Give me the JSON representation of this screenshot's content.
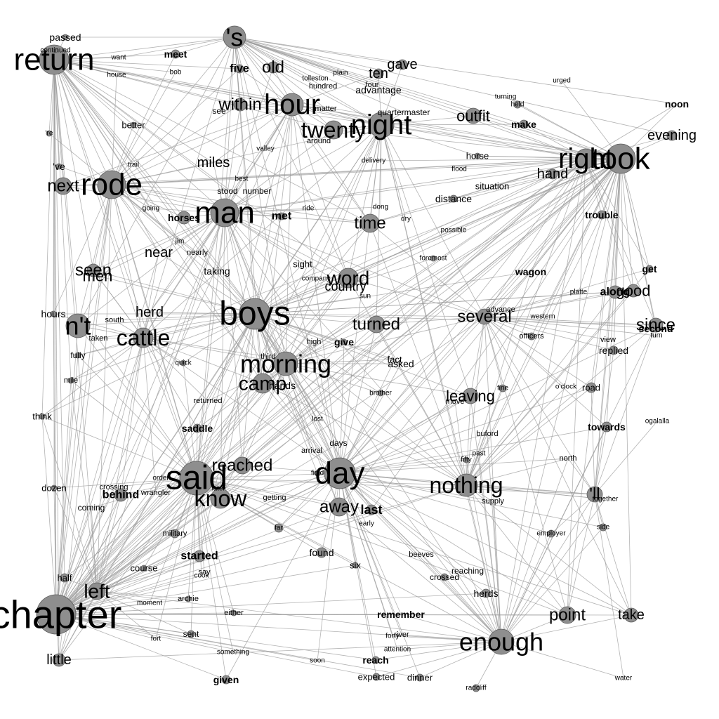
{
  "diagram": {
    "background": "#ffffff",
    "edge_color": "#9a9a9a",
    "node_color": "#8e8e8e",
    "nodes": [
      {
        "id": "chapter",
        "label": "chapter"
      },
      {
        "id": "return",
        "label": "return"
      },
      {
        "id": "s",
        "label": "'s"
      },
      {
        "id": "passed",
        "label": "passed"
      },
      {
        "id": "continued",
        "label": "continued"
      },
      {
        "id": "want",
        "label": "want"
      },
      {
        "id": "meet",
        "label": "meet"
      },
      {
        "id": "house",
        "label": "house"
      },
      {
        "id": "bob",
        "label": "bob"
      },
      {
        "id": "five",
        "label": "five"
      },
      {
        "id": "old",
        "label": "old"
      },
      {
        "id": "tolleston",
        "label": "tolleston"
      },
      {
        "id": "plain",
        "label": "plain"
      },
      {
        "id": "ten",
        "label": "ten"
      },
      {
        "id": "gave",
        "label": "gave"
      },
      {
        "id": "hundred",
        "label": "hundred"
      },
      {
        "id": "four",
        "label": "four"
      },
      {
        "id": "advantage",
        "label": "advantage"
      },
      {
        "id": "within",
        "label": "within"
      },
      {
        "id": "hour",
        "label": "hour"
      },
      {
        "id": "see",
        "label": "see"
      },
      {
        "id": "matter",
        "label": "matter"
      },
      {
        "id": "quartermaster",
        "label": "quartermaster"
      },
      {
        "id": "night",
        "label": "night"
      },
      {
        "id": "twenty",
        "label": "twenty"
      },
      {
        "id": "outfit",
        "label": "outfit"
      },
      {
        "id": "turning",
        "label": "turning"
      },
      {
        "id": "held",
        "label": "held"
      },
      {
        "id": "urged",
        "label": "urged"
      },
      {
        "id": "noon",
        "label": "noon"
      },
      {
        "id": "make",
        "label": "make"
      },
      {
        "id": "evening",
        "label": "evening"
      },
      {
        "id": "better",
        "label": "better"
      },
      {
        "id": "re",
        "label": "'re"
      },
      {
        "id": "valley",
        "label": "valley"
      },
      {
        "id": "around",
        "label": "around"
      },
      {
        "id": "right",
        "label": "right"
      },
      {
        "id": "took",
        "label": "took"
      },
      {
        "id": "horse",
        "label": "horse"
      },
      {
        "id": "flood",
        "label": "flood"
      },
      {
        "id": "hand",
        "label": "hand"
      },
      {
        "id": "trail",
        "label": "trail"
      },
      {
        "id": "delivery",
        "label": "delivery"
      },
      {
        "id": "ve",
        "label": "'ve"
      },
      {
        "id": "miles",
        "label": "miles"
      },
      {
        "id": "best",
        "label": "best"
      },
      {
        "id": "next",
        "label": "next"
      },
      {
        "id": "rode",
        "label": "rode"
      },
      {
        "id": "stood",
        "label": "stood"
      },
      {
        "id": "number",
        "label": "number"
      },
      {
        "id": "situation",
        "label": "situation"
      },
      {
        "id": "distance",
        "label": "distance"
      },
      {
        "id": "going",
        "label": "going"
      },
      {
        "id": "man",
        "label": "man"
      },
      {
        "id": "ride",
        "label": "ride"
      },
      {
        "id": "dong",
        "label": "dong"
      },
      {
        "id": "dry",
        "label": "dry"
      },
      {
        "id": "trouble",
        "label": "trouble"
      },
      {
        "id": "horses",
        "label": "horses"
      },
      {
        "id": "met",
        "label": "met"
      },
      {
        "id": "time",
        "label": "time"
      },
      {
        "id": "possible",
        "label": "possible"
      },
      {
        "id": "jim",
        "label": "jim"
      },
      {
        "id": "near",
        "label": "near"
      },
      {
        "id": "nearly",
        "label": "nearly"
      },
      {
        "id": "foremost",
        "label": "foremost"
      },
      {
        "id": "sight",
        "label": "sight"
      },
      {
        "id": "seen",
        "label": "seen"
      },
      {
        "id": "men",
        "label": "men"
      },
      {
        "id": "taking",
        "label": "taking"
      },
      {
        "id": "wagon",
        "label": "wagon"
      },
      {
        "id": "get",
        "label": "get"
      },
      {
        "id": "company",
        "label": "company"
      },
      {
        "id": "word",
        "label": "word"
      },
      {
        "id": "country",
        "label": "country"
      },
      {
        "id": "plate",
        "label": "platte"
      },
      {
        "id": "along",
        "label": "along"
      },
      {
        "id": "good",
        "label": "good"
      },
      {
        "id": "sun",
        "label": "sun"
      },
      {
        "id": "boys",
        "label": "boys"
      },
      {
        "id": "hours",
        "label": "hours"
      },
      {
        "id": "nt",
        "label": "n't"
      },
      {
        "id": "herd",
        "label": "herd"
      },
      {
        "id": "south",
        "label": "south"
      },
      {
        "id": "advance",
        "label": "advance"
      },
      {
        "id": "several",
        "label": "several"
      },
      {
        "id": "western",
        "label": "western"
      },
      {
        "id": "since",
        "label": "since"
      },
      {
        "id": "second",
        "label": "second"
      },
      {
        "id": "turn",
        "label": "turn"
      },
      {
        "id": "cattle",
        "label": "cattle"
      },
      {
        "id": "taken",
        "label": "taken"
      },
      {
        "id": "turned",
        "label": "turned"
      },
      {
        "id": "officers",
        "label": "officers"
      },
      {
        "id": "high",
        "label": "high"
      },
      {
        "id": "give",
        "label": "give"
      },
      {
        "id": "view",
        "label": "view"
      },
      {
        "id": "replied",
        "label": "replied"
      },
      {
        "id": "fully",
        "label": "fully"
      },
      {
        "id": "third",
        "label": "third"
      },
      {
        "id": "morning",
        "label": "morning"
      },
      {
        "id": "fact",
        "label": "fact"
      },
      {
        "id": "asked",
        "label": "asked"
      },
      {
        "id": "quick",
        "label": "quick"
      },
      {
        "id": "mile",
        "label": "mile"
      },
      {
        "id": "camp",
        "label": "camp"
      },
      {
        "id": "hands",
        "label": "hands"
      },
      {
        "id": "fine",
        "label": "fine"
      },
      {
        "id": "oclock",
        "label": "o'clock"
      },
      {
        "id": "road",
        "label": "road"
      },
      {
        "id": "brother",
        "label": "brother"
      },
      {
        "id": "leaving",
        "label": "leaving"
      },
      {
        "id": "move",
        "label": "move"
      },
      {
        "id": "returned",
        "label": "returned"
      },
      {
        "id": "think",
        "label": "think"
      },
      {
        "id": "lost",
        "label": "lost"
      },
      {
        "id": "ogalalla",
        "label": "ogalalla"
      },
      {
        "id": "saddle",
        "label": "saddle"
      },
      {
        "id": "towards",
        "label": "towards"
      },
      {
        "id": "buford",
        "label": "buford"
      },
      {
        "id": "days",
        "label": "days"
      },
      {
        "id": "arrival",
        "label": "arrival"
      },
      {
        "id": "past",
        "label": "past"
      },
      {
        "id": "fifty",
        "label": "fifty"
      },
      {
        "id": "north",
        "label": "north"
      },
      {
        "id": "reached",
        "label": "reached"
      },
      {
        "id": "day",
        "label": "day"
      },
      {
        "id": "said",
        "label": "said"
      },
      {
        "id": "field",
        "label": "field"
      },
      {
        "id": "nothing",
        "label": "nothing"
      },
      {
        "id": "dozen",
        "label": "dozen"
      },
      {
        "id": "crossing",
        "label": "crossing"
      },
      {
        "id": "order",
        "label": "order"
      },
      {
        "id": "later",
        "label": "later"
      },
      {
        "id": "ll",
        "label": "'ll"
      },
      {
        "id": "together",
        "label": "together"
      },
      {
        "id": "behind",
        "label": "behind"
      },
      {
        "id": "wrangler",
        "label": "wrangler"
      },
      {
        "id": "know",
        "label": "know"
      },
      {
        "id": "getting",
        "label": "getting"
      },
      {
        "id": "away",
        "label": "away"
      },
      {
        "id": "last",
        "label": "last"
      },
      {
        "id": "supply",
        "label": "supply"
      },
      {
        "id": "coming",
        "label": "coming"
      },
      {
        "id": "early",
        "label": "early"
      },
      {
        "id": "far",
        "label": "far"
      },
      {
        "id": "side",
        "label": "side"
      },
      {
        "id": "military",
        "label": "military"
      },
      {
        "id": "employer",
        "label": "employer"
      },
      {
        "id": "found",
        "label": "found"
      },
      {
        "id": "beeves",
        "label": "beeves"
      },
      {
        "id": "started",
        "label": "started"
      },
      {
        "id": "course",
        "label": "course"
      },
      {
        "id": "six",
        "label": "six"
      },
      {
        "id": "say",
        "label": "say"
      },
      {
        "id": "cook",
        "label": "cook"
      },
      {
        "id": "reaching",
        "label": "reaching"
      },
      {
        "id": "crossed",
        "label": "crossed"
      },
      {
        "id": "half",
        "label": "half"
      },
      {
        "id": "left",
        "label": "left"
      },
      {
        "id": "herds",
        "label": "herds"
      },
      {
        "id": "archie",
        "label": "archie"
      },
      {
        "id": "moment",
        "label": "moment"
      },
      {
        "id": "either",
        "label": "either"
      },
      {
        "id": "remember",
        "label": "remember"
      },
      {
        "id": "point",
        "label": "point"
      },
      {
        "id": "take",
        "label": "take"
      },
      {
        "id": "fort",
        "label": "fort"
      },
      {
        "id": "sent",
        "label": "sent"
      },
      {
        "id": "forty",
        "label": "forty"
      },
      {
        "id": "river",
        "label": "river"
      },
      {
        "id": "enough",
        "label": "enough"
      },
      {
        "id": "attention",
        "label": "attention"
      },
      {
        "id": "something",
        "label": "something"
      },
      {
        "id": "little",
        "label": "little"
      },
      {
        "id": "reach",
        "label": "reach"
      },
      {
        "id": "soon",
        "label": "soon"
      },
      {
        "id": "expected",
        "label": "expected"
      },
      {
        "id": "dinner",
        "label": "dinner"
      },
      {
        "id": "given",
        "label": "given"
      },
      {
        "id": "water",
        "label": "water"
      },
      {
        "id": "radcliff",
        "label": "radcliff"
      }
    ]
  }
}
